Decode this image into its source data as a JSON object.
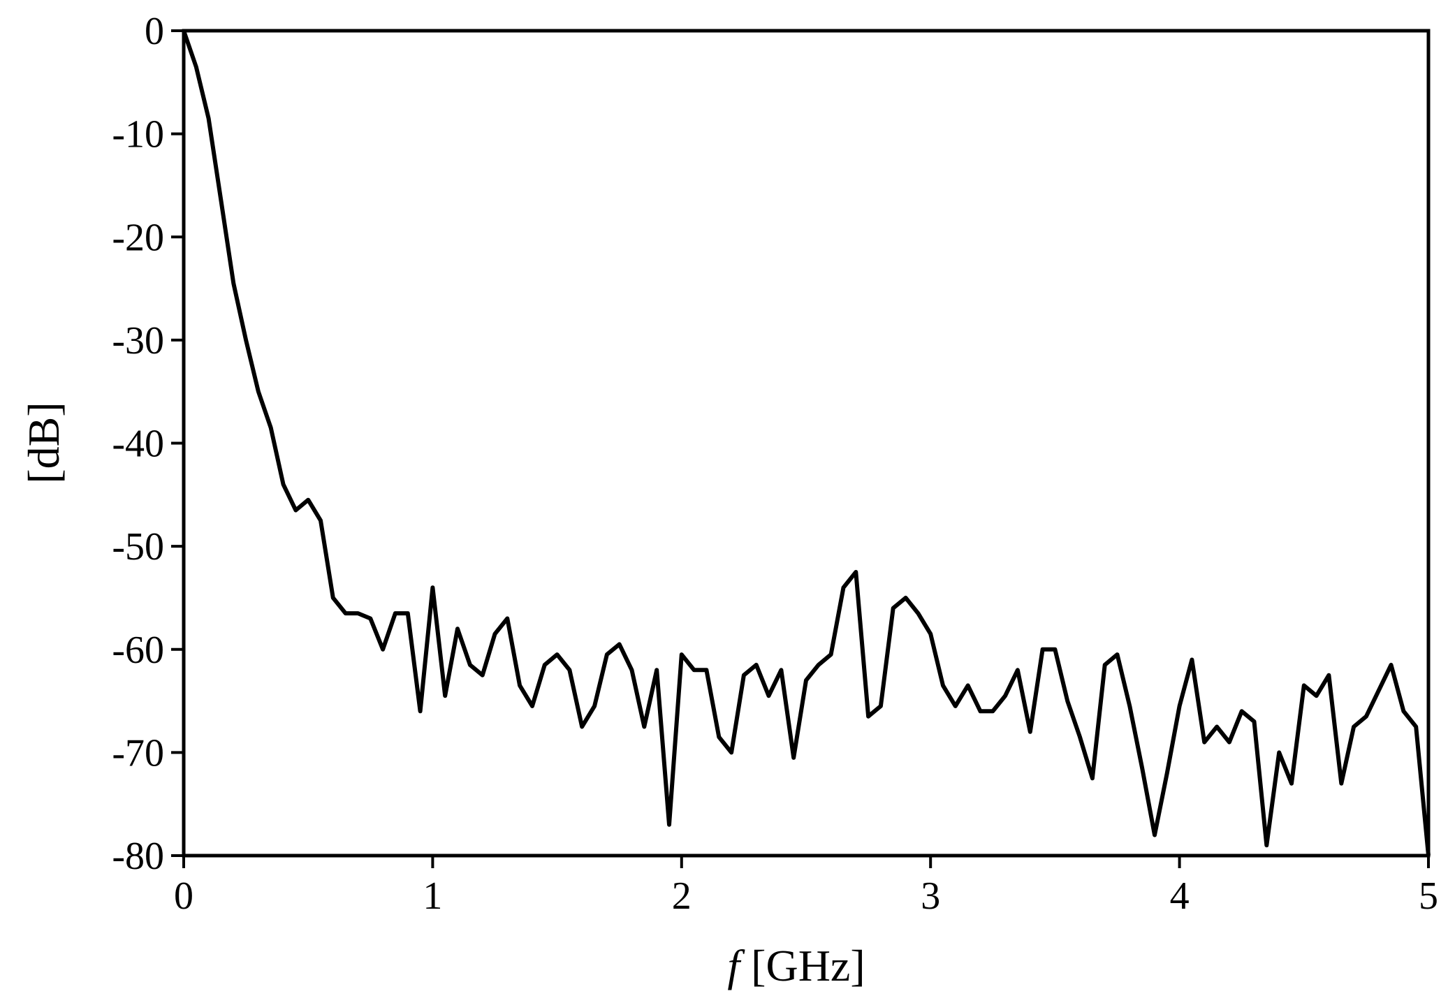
{
  "chart_data": {
    "type": "line",
    "title": "",
    "xlabel": {
      "italic_part": "f",
      "rest": " [GHz]"
    },
    "ylabel": "[dB]",
    "xlim": [
      0,
      5
    ],
    "ylim": [
      -80,
      0
    ],
    "xticks": [
      "0",
      "1",
      "2",
      "3",
      "4",
      "5"
    ],
    "yticks": [
      "0",
      "-10",
      "-20",
      "-30",
      "-40",
      "-50",
      "-60",
      "-70",
      "-80"
    ],
    "grid": false,
    "legend": "none",
    "line_color": "#000000",
    "series": [
      {
        "x": [
          0,
          0.05,
          0.1,
          0.15,
          0.2,
          0.25,
          0.3,
          0.35,
          0.4,
          0.45,
          0.5,
          0.55,
          0.6,
          0.65,
          0.7,
          0.75,
          0.8,
          0.85,
          0.9,
          0.95,
          1.0,
          1.05,
          1.1,
          1.15,
          1.2,
          1.25,
          1.3,
          1.35,
          1.4,
          1.45,
          1.5,
          1.55,
          1.6,
          1.65,
          1.7,
          1.75,
          1.8,
          1.85,
          1.9,
          1.95,
          2.0,
          2.05,
          2.1,
          2.15,
          2.2,
          2.25,
          2.3,
          2.35,
          2.4,
          2.45,
          2.5,
          2.55,
          2.6,
          2.65,
          2.7,
          2.75,
          2.8,
          2.85,
          2.9,
          2.95,
          3.0,
          3.05,
          3.1,
          3.15,
          3.2,
          3.25,
          3.3,
          3.35,
          3.4,
          3.45,
          3.5,
          3.55,
          3.6,
          3.65,
          3.7,
          3.75,
          3.8,
          3.85,
          3.9,
          3.95,
          4.0,
          4.05,
          4.1,
          4.15,
          4.2,
          4.25,
          4.3,
          4.35,
          4.4,
          4.45,
          4.5,
          4.55,
          4.6,
          4.65,
          4.7,
          4.75,
          4.8,
          4.85,
          4.9,
          4.95,
          5.0
        ],
        "y": [
          0,
          -3.5,
          -8.5,
          -16.5,
          -24.5,
          -30,
          -35,
          -38.5,
          -44,
          -46.5,
          -45.5,
          -47.5,
          -55,
          -56.5,
          -56.5,
          -57,
          -60,
          -56.5,
          -56.5,
          -66,
          -54,
          -64.5,
          -58,
          -61.5,
          -62.5,
          -58.5,
          -57,
          -63.5,
          -65.5,
          -61.5,
          -60.5,
          -62,
          -67.5,
          -65.5,
          -60.5,
          -59.5,
          -62,
          -67.5,
          -62,
          -77,
          -60.5,
          -62,
          -62,
          -68.5,
          -70,
          -62.5,
          -61.5,
          -64.5,
          -62,
          -70.5,
          -63,
          -61.5,
          -60.5,
          -54,
          -52.5,
          -66.5,
          -65.5,
          -56,
          -55,
          -56.5,
          -58.5,
          -63.5,
          -65.5,
          -63.5,
          -66,
          -66,
          -64.5,
          -62,
          -68,
          -60,
          -60,
          -65,
          -68.5,
          -72.5,
          -61.5,
          -60.5,
          -65.5,
          -71.5,
          -78,
          -72,
          -65.5,
          -61,
          -69,
          -67.5,
          -69,
          -66,
          -67,
          -79,
          -70,
          -73,
          -63.5,
          -64.5,
          -62.5,
          -73,
          -67.5,
          -66.5,
          -64,
          -61.5,
          -66,
          -67.5,
          -80
        ]
      }
    ]
  }
}
